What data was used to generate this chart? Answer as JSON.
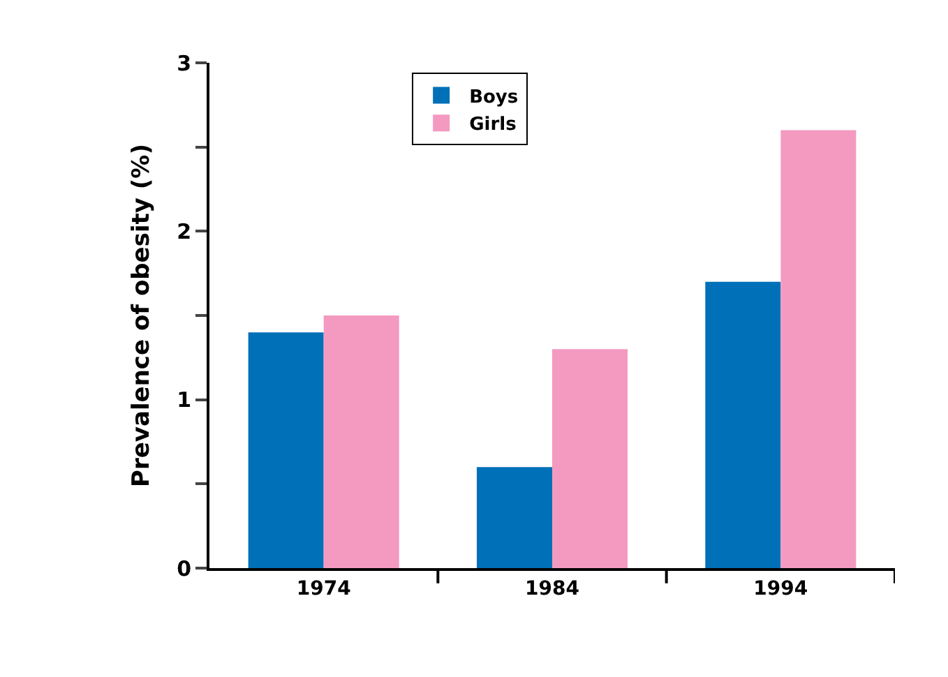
{
  "chart_data": {
    "type": "bar",
    "ylabel": "Prevalence of obesity (%)",
    "categories": [
      "1974",
      "1984",
      "1994"
    ],
    "series": [
      {
        "name": "Boys",
        "color": "#0070b8",
        "values": [
          1.4,
          0.6,
          1.7
        ]
      },
      {
        "name": "Girls",
        "color": "#f49ac1",
        "values": [
          1.5,
          1.3,
          2.6
        ]
      }
    ],
    "ylim": [
      0,
      3
    ],
    "yticks": [
      0,
      {
        "value": 0.5,
        "label": null
      },
      1,
      {
        "value": 1.5,
        "label": null
      },
      2,
      {
        "value": 2.5,
        "label": null
      },
      3
    ],
    "legend": "top"
  }
}
